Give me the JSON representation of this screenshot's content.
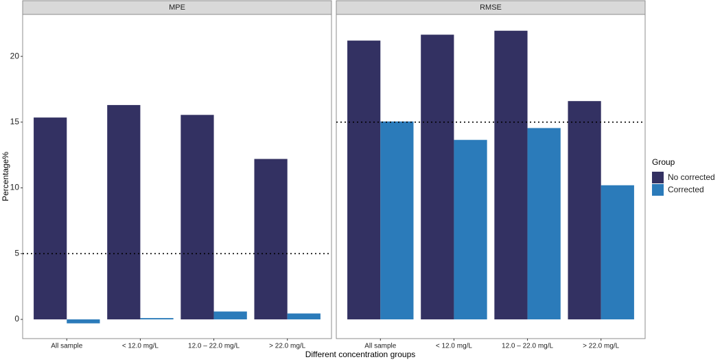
{
  "chart_data": [
    {
      "type": "bar",
      "title": "MPE",
      "categories": [
        "All sample",
        "< 12.0 mg/L",
        "12.0 – 22.0 mg/L",
        "> 22.0 mg/L"
      ],
      "series": [
        {
          "name": "No corrected",
          "color": "#333162",
          "values": [
            15.35,
            16.3,
            15.55,
            12.2
          ]
        },
        {
          "name": "Corrected",
          "color": "#2b7bba",
          "values": [
            -0.3,
            0.1,
            0.6,
            0.45
          ]
        }
      ],
      "ylim": [
        -1.46,
        23.19
      ],
      "yticks": [
        0,
        5,
        10,
        15,
        20
      ],
      "hline": 5
    },
    {
      "type": "bar",
      "title": "RMSE",
      "categories": [
        "All sample",
        "< 12.0 mg/L",
        "12.0 – 22.0 mg/L",
        "> 22.0 mg/L"
      ],
      "series": [
        {
          "name": "No corrected",
          "color": "#333162",
          "values": [
            21.2,
            21.65,
            21.95,
            16.6
          ]
        },
        {
          "name": "Corrected",
          "color": "#2b7bba",
          "values": [
            15.05,
            13.65,
            14.55,
            10.2
          ]
        }
      ],
      "ylim": [
        -1.46,
        23.19
      ],
      "hline": 15
    }
  ],
  "shared": {
    "x_label": "Different concentration groups",
    "y_label": "Percentage%",
    "legend_title": "Group"
  }
}
